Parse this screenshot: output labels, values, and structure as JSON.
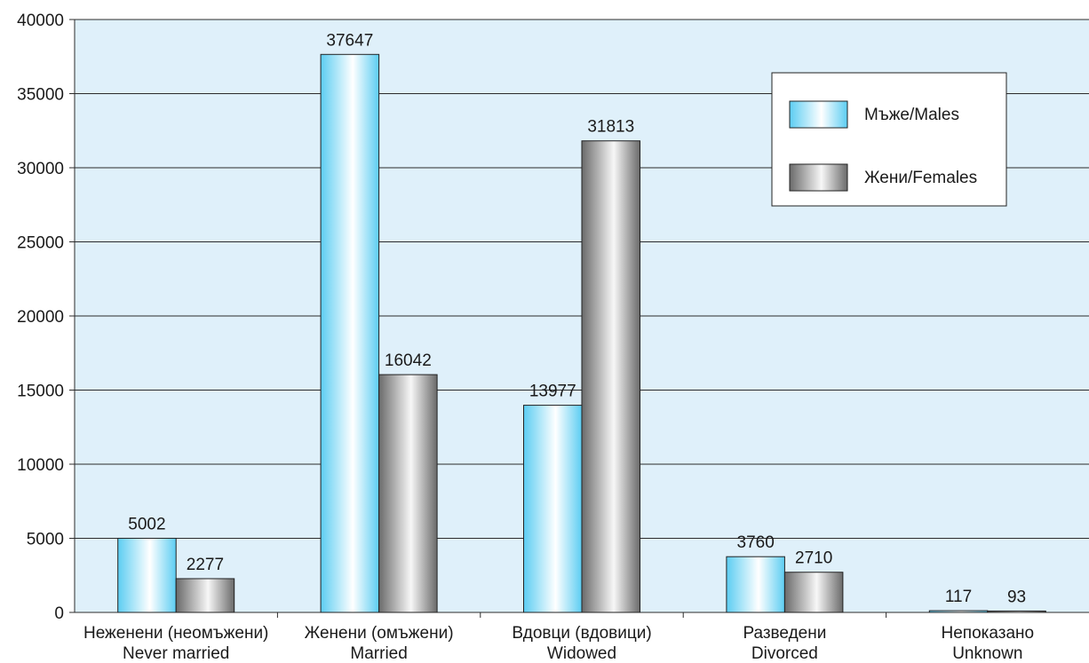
{
  "chart_data": {
    "type": "bar",
    "categories": [
      [
        "Неженени (неомъжени)",
        "Never married"
      ],
      [
        "Женени (омъжени)",
        "Married"
      ],
      [
        "Вдовци (вдовици)",
        "Widowed"
      ],
      [
        "Разведени",
        "Divorced"
      ],
      [
        "Непоказано",
        "Unknown"
      ]
    ],
    "series": [
      {
        "name": "Мъже/Males",
        "values": [
          5002,
          37647,
          13977,
          3760,
          117
        ]
      },
      {
        "name": "Жени/Females",
        "values": [
          2277,
          16042,
          31813,
          2710,
          93
        ]
      }
    ],
    "yticks": [
      "0",
      "5000",
      "10000",
      "15000",
      "20000",
      "25000",
      "30000",
      "35000",
      "40000"
    ],
    "ylim": [
      0,
      40000
    ],
    "grid": true,
    "legend_position": "top-right",
    "colors": {
      "plot_bg": "#dff0fa",
      "grid": "#2b2b2b",
      "males_light": "#ffffff",
      "males_dark": "#5ccdf2",
      "females_light": "#f7f7f7",
      "females_dark": "#6a6a6a"
    }
  }
}
